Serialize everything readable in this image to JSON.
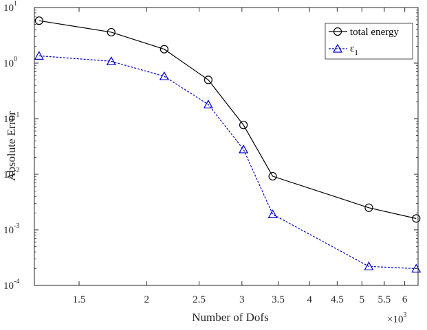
{
  "chart_data": {
    "type": "line",
    "x_scale": "log",
    "y_scale": "log",
    "xlabel": "Number of Dofs",
    "ylabel": "Absolute Error",
    "x_multiplier_label": {
      "base": "×10",
      "exp": "3"
    },
    "xlim": [
      1240,
      6350
    ],
    "ylim": [
      0.0001,
      10
    ],
    "x_ticks": [
      {
        "value": 1500,
        "label": "1.5"
      },
      {
        "value": 2000,
        "label": "2"
      },
      {
        "value": 2500,
        "label": "2.5"
      },
      {
        "value": 3000,
        "label": "3"
      },
      {
        "value": 3500,
        "label": "3.5"
      },
      {
        "value": 4000,
        "label": "4"
      },
      {
        "value": 4500,
        "label": "4.5"
      },
      {
        "value": 5000,
        "label": "5"
      },
      {
        "value": 5500,
        "label": "5.5"
      },
      {
        "value": 6000,
        "label": "6"
      }
    ],
    "y_ticks": [
      {
        "value": 0.0001,
        "base": "10",
        "exp": "-4"
      },
      {
        "value": 0.001,
        "base": "10",
        "exp": "-3"
      },
      {
        "value": 0.01,
        "base": "10",
        "exp": "-2"
      },
      {
        "value": 0.1,
        "base": "10",
        "exp": "-1"
      },
      {
        "value": 1,
        "base": "10",
        "exp": "0"
      },
      {
        "value": 10,
        "base": "10",
        "exp": "1"
      }
    ],
    "grid": false,
    "legend_position": "top-right",
    "series": [
      {
        "name": "total energy",
        "color": "#000000",
        "line_style": "solid",
        "marker": "circle",
        "x": [
          1265,
          1720,
          2155,
          2600,
          3020,
          3420,
          5150,
          6300
        ],
        "y": [
          5.8,
          3.6,
          1.78,
          0.5,
          0.077,
          0.0092,
          0.0025,
          0.0016
        ]
      },
      {
        "name": "ε",
        "name_subscript": "1",
        "color": "#0000c8",
        "line_style": "dashed",
        "marker": "triangle",
        "x": [
          1265,
          1720,
          2155,
          2600,
          3020,
          3420,
          5150,
          6300
        ],
        "y": [
          1.35,
          1.08,
          0.58,
          0.18,
          0.028,
          0.0019,
          0.00022,
          0.0002
        ]
      }
    ]
  }
}
